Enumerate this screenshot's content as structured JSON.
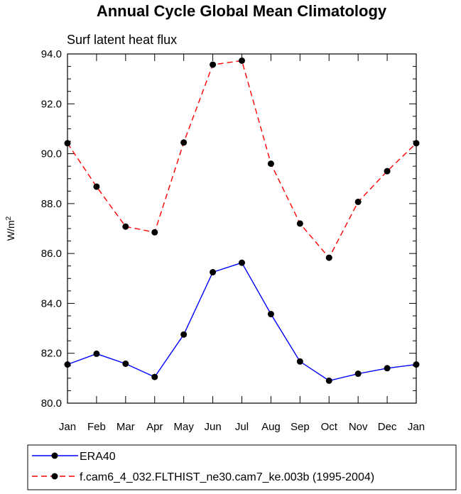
{
  "chart_data": {
    "type": "line",
    "title": "Annual Cycle Global Mean Climatology",
    "subtitle": "Surf latent heat flux",
    "ylabel_base": "W/m",
    "ylabel_sup": "2",
    "xlabel": "",
    "categories": [
      "Jan",
      "Feb",
      "Mar",
      "Apr",
      "May",
      "Jun",
      "Jul",
      "Aug",
      "Sep",
      "Oct",
      "Nov",
      "Dec",
      "Jan"
    ],
    "ylim": [
      80.0,
      94.0
    ],
    "yticks": [
      "80.0",
      "82.0",
      "84.0",
      "86.0",
      "88.0",
      "90.0",
      "92.0",
      "94.0"
    ],
    "grid": false,
    "legend_position": "bottom",
    "series": [
      {
        "name": "ERA40",
        "color": "#0000ff",
        "dash": "solid",
        "values": [
          81.55,
          81.98,
          81.58,
          81.05,
          82.75,
          85.25,
          85.63,
          83.57,
          81.67,
          80.9,
          81.18,
          81.4,
          81.55
        ]
      },
      {
        "name": "f.cam6_4_032.FLTHIST_ne30.cam7_ke.003b (1995-2004)",
        "color": "#ff0000",
        "dash": "dashed",
        "values": [
          90.42,
          88.68,
          87.08,
          86.85,
          90.45,
          93.57,
          93.73,
          89.6,
          87.2,
          85.83,
          88.07,
          89.3,
          90.42
        ]
      }
    ]
  }
}
